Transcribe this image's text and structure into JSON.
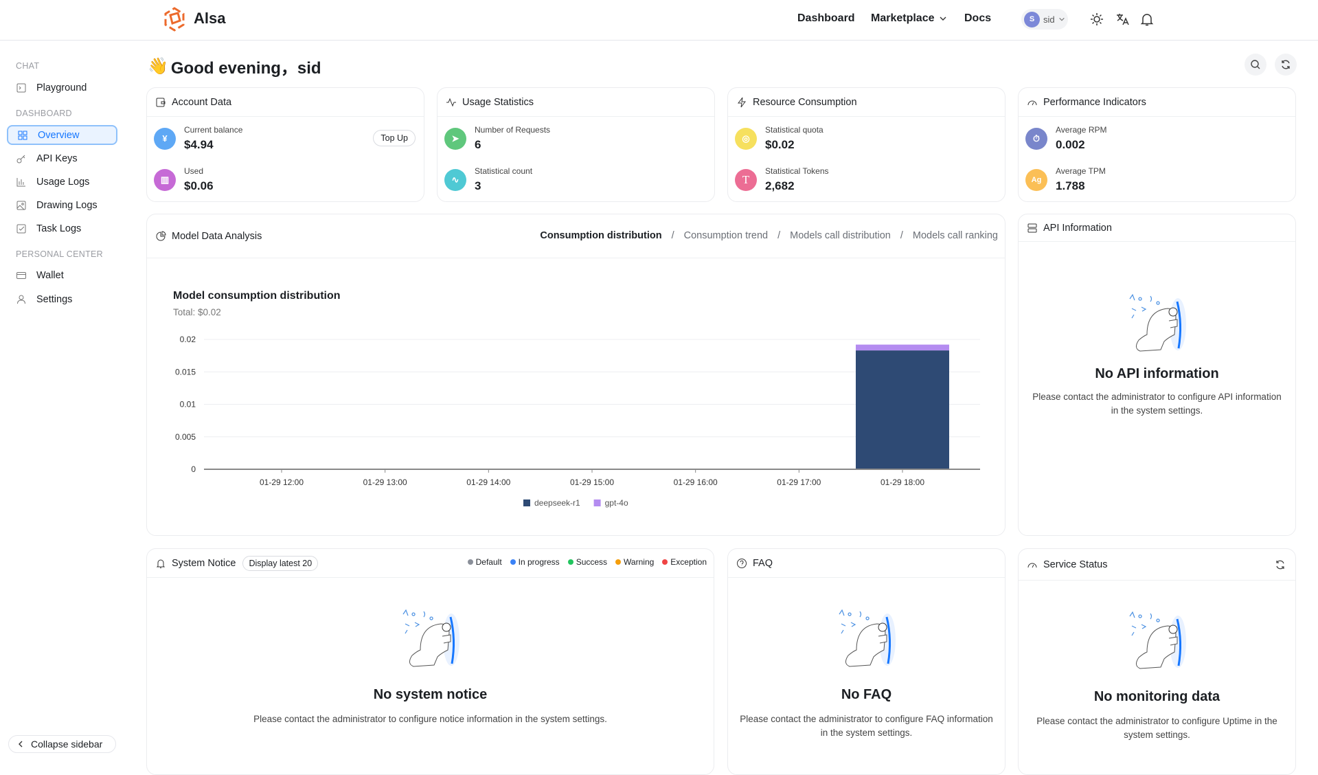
{
  "header": {
    "app_name": "Alsa",
    "nav": [
      "Dashboard",
      "Marketplace",
      "Docs"
    ],
    "user": {
      "initial": "S",
      "name": "sid"
    }
  },
  "sidebar": {
    "sections": [
      {
        "title": "CHAT",
        "items": [
          {
            "label": "Playground",
            "icon": "terminal-icon"
          }
        ]
      },
      {
        "title": "DASHBOARD",
        "items": [
          {
            "label": "Overview",
            "icon": "grid-icon",
            "active": true
          },
          {
            "label": "API Keys",
            "icon": "key-icon"
          },
          {
            "label": "Usage Logs",
            "icon": "bar-chart-icon"
          },
          {
            "label": "Drawing Logs",
            "icon": "image-icon"
          },
          {
            "label": "Task Logs",
            "icon": "checkbox-icon"
          }
        ]
      },
      {
        "title": "PERSONAL CENTER",
        "items": [
          {
            "label": "Wallet",
            "icon": "wallet-icon"
          },
          {
            "label": "Settings",
            "icon": "user-icon"
          }
        ]
      }
    ],
    "collapse_label": "Collapse sidebar"
  },
  "greeting": {
    "emoji": "👋",
    "text": "Good evening，sid"
  },
  "stat_cards": [
    {
      "title": "Account Data",
      "items": [
        {
          "label": "Current balance",
          "value": "$4.94",
          "color": "#5ea8f5"
        },
        {
          "label": "Used",
          "value": "$0.06",
          "color": "#c66ad6"
        }
      ],
      "action": "Top Up"
    },
    {
      "title": "Usage Statistics",
      "items": [
        {
          "label": "Number of Requests",
          "value": "6",
          "color": "#5fc77c"
        },
        {
          "label": "Statistical count",
          "value": "3",
          "color": "#4fc9d4"
        }
      ]
    },
    {
      "title": "Resource Consumption",
      "items": [
        {
          "label": "Statistical quota",
          "value": "$0.02",
          "color": "#f6e05e"
        },
        {
          "label": "Statistical Tokens",
          "value": "2,682",
          "color": "#ec6d94",
          "glyph": "T"
        }
      ]
    },
    {
      "title": "Performance Indicators",
      "items": [
        {
          "label": "Average RPM",
          "value": "0.002",
          "color": "#7986cb"
        },
        {
          "label": "Average TPM",
          "value": "1.788",
          "color": "#fbbf56",
          "glyph": "Ag"
        }
      ]
    }
  ],
  "analysis": {
    "title": "Model Data Analysis",
    "tabs": [
      "Consumption distribution",
      "Consumption trend",
      "Models call distribution",
      "Models call ranking"
    ],
    "active_tab": 0,
    "separator": "/"
  },
  "chart_data": {
    "type": "bar",
    "stacked": true,
    "title": "Model consumption distribution",
    "subtitle": "Total:  $0.02",
    "categories": [
      "01-29 12:00",
      "01-29 13:00",
      "01-29 14:00",
      "01-29 15:00",
      "01-29 16:00",
      "01-29 17:00",
      "01-29 18:00"
    ],
    "series": [
      {
        "name": "deepseek-r1",
        "color": "#2e4a74",
        "values": [
          0,
          0,
          0,
          0,
          0,
          0,
          0.0183
        ]
      },
      {
        "name": "gpt-4o",
        "color": "#b48cf0",
        "values": [
          0,
          0,
          0,
          0,
          0,
          0,
          0.0009
        ]
      }
    ],
    "yticks": [
      "0",
      "0.005",
      "0.01",
      "0.015",
      "0.02"
    ],
    "ylim": [
      0,
      0.02
    ],
    "grid": true,
    "legend": "bottom"
  },
  "api_info": {
    "title": "API Information",
    "empty_title": "No API information",
    "empty_desc": "Please contact the administrator to configure API information in the system settings."
  },
  "notice": {
    "title": "System Notice",
    "badge": "Display latest 20",
    "legend": [
      {
        "label": "Default",
        "color": "#8a8f99"
      },
      {
        "label": "In progress",
        "color": "#3b82f6"
      },
      {
        "label": "Success",
        "color": "#22c55e"
      },
      {
        "label": "Warning",
        "color": "#f59e0b"
      },
      {
        "label": "Exception",
        "color": "#ef4444"
      }
    ],
    "empty_title": "No system notice",
    "empty_desc": "Please contact the administrator to configure notice information in the system settings."
  },
  "faq": {
    "title": "FAQ",
    "empty_title": "No FAQ",
    "empty_desc": "Please contact the administrator to configure FAQ information in the system settings."
  },
  "service": {
    "title": "Service Status",
    "empty_title": "No monitoring data",
    "empty_desc": "Please contact the administrator to configure Uptime in the system settings."
  }
}
